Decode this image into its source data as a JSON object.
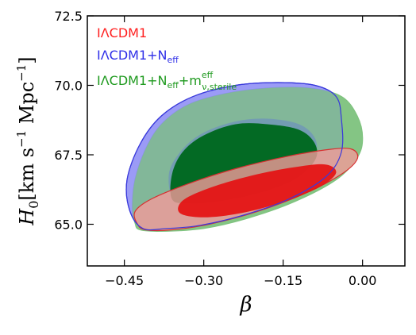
{
  "chart_data": {
    "type": "contour",
    "xlabel": "β",
    "ylabel": {
      "symbol": "H",
      "subscript": "0",
      "units": "[km s",
      "exp1": "−1",
      "units2": " Mpc",
      "exp2": "−1",
      "close": "]"
    },
    "xlim": [
      -0.52,
      0.08
    ],
    "ylim": [
      63.5,
      72.5
    ],
    "xticks": [
      -0.45,
      -0.3,
      -0.15,
      0.0
    ],
    "xtick_labels": [
      "−0.45",
      "−0.30",
      "−0.15",
      "0.00"
    ],
    "yticks": [
      65.0,
      67.5,
      70.0,
      72.5
    ],
    "ytick_labels": [
      "65.0",
      "67.5",
      "70.0",
      "72.5"
    ],
    "legend": [
      {
        "text": "IΛCDM1",
        "color": "#ff2020"
      },
      {
        "text": "IΛCDM1+N",
        "sub": "eff",
        "color": "#2f2fe8"
      },
      {
        "text": "IΛCDM1+N",
        "sub": "eff",
        "extra": "+m",
        "extra_sup": "eff",
        "extra_sub": "ν,sterile",
        "color": "#1f9a1f"
      }
    ],
    "series": [
      {
        "name": "IΛCDM1+N_eff+m_ν,sterile",
        "colors": {
          "outer": "#7fc37f",
          "inner": "#036a24"
        },
        "outer": [
          [
            -0.43,
            65.05
          ],
          [
            -0.435,
            65.6
          ],
          [
            -0.43,
            66.6
          ],
          [
            -0.41,
            67.7
          ],
          [
            -0.38,
            68.6
          ],
          [
            -0.33,
            69.3
          ],
          [
            -0.26,
            69.7
          ],
          [
            -0.18,
            69.9
          ],
          [
            -0.1,
            69.9
          ],
          [
            -0.04,
            69.6
          ],
          [
            -0.01,
            68.9
          ],
          [
            0.0,
            68.1
          ],
          [
            -0.01,
            67.4
          ],
          [
            -0.05,
            66.6
          ],
          [
            -0.13,
            65.8
          ],
          [
            -0.22,
            65.2
          ],
          [
            -0.3,
            64.85
          ],
          [
            -0.37,
            64.75
          ],
          [
            -0.42,
            64.8
          ]
        ],
        "inner": [
          [
            -0.36,
            65.9
          ],
          [
            -0.36,
            66.8
          ],
          [
            -0.34,
            67.6
          ],
          [
            -0.3,
            68.2
          ],
          [
            -0.24,
            68.6
          ],
          [
            -0.18,
            68.6
          ],
          [
            -0.12,
            68.4
          ],
          [
            -0.09,
            67.9
          ],
          [
            -0.09,
            67.3
          ],
          [
            -0.13,
            66.6
          ],
          [
            -0.2,
            66.1
          ],
          [
            -0.28,
            65.8
          ],
          [
            -0.33,
            65.75
          ]
        ]
      },
      {
        "name": "IΛCDM1+N_eff",
        "colors": {
          "outer": "#8a8af5",
          "inner": "#6d93bb",
          "stroke": "#3a3adb"
        },
        "outer": [
          [
            -0.415,
            64.85
          ],
          [
            -0.44,
            65.5
          ],
          [
            -0.445,
            66.6
          ],
          [
            -0.42,
            67.9
          ],
          [
            -0.38,
            68.9
          ],
          [
            -0.32,
            69.6
          ],
          [
            -0.24,
            70.0
          ],
          [
            -0.16,
            70.1
          ],
          [
            -0.09,
            70.0
          ],
          [
            -0.05,
            69.6
          ],
          [
            -0.04,
            68.8
          ],
          [
            -0.04,
            67.6
          ],
          [
            -0.07,
            66.7
          ],
          [
            -0.14,
            65.9
          ],
          [
            -0.23,
            65.3
          ],
          [
            -0.31,
            64.95
          ],
          [
            -0.37,
            64.85
          ]
        ],
        "inner": [
          [
            -0.36,
            66.0
          ],
          [
            -0.365,
            66.9
          ],
          [
            -0.34,
            67.7
          ],
          [
            -0.3,
            68.3
          ],
          [
            -0.24,
            68.7
          ],
          [
            -0.18,
            68.8
          ],
          [
            -0.12,
            68.6
          ],
          [
            -0.09,
            68.1
          ],
          [
            -0.09,
            67.5
          ],
          [
            -0.12,
            66.8
          ],
          [
            -0.19,
            66.2
          ],
          [
            -0.27,
            65.9
          ],
          [
            -0.33,
            65.85
          ]
        ]
      },
      {
        "name": "IΛCDM1",
        "colors": {
          "outer": "#f39a9a",
          "inner": "#e41515",
          "stroke": "#d63030"
        },
        "outer": [
          [
            -0.425,
            65.0
          ],
          [
            -0.43,
            65.45
          ],
          [
            -0.4,
            65.9
          ],
          [
            -0.33,
            66.45
          ],
          [
            -0.24,
            67.0
          ],
          [
            -0.14,
            67.45
          ],
          [
            -0.06,
            67.7
          ],
          [
            -0.02,
            67.7
          ],
          [
            -0.01,
            67.35
          ],
          [
            -0.04,
            66.8
          ],
          [
            -0.11,
            66.1
          ],
          [
            -0.2,
            65.45
          ],
          [
            -0.29,
            65.0
          ],
          [
            -0.36,
            64.8
          ],
          [
            -0.41,
            64.8
          ]
        ],
        "inner": [
          [
            -0.345,
            65.4
          ],
          [
            -0.34,
            65.85
          ],
          [
            -0.29,
            66.3
          ],
          [
            -0.21,
            66.75
          ],
          [
            -0.13,
            67.05
          ],
          [
            -0.07,
            67.15
          ],
          [
            -0.05,
            66.85
          ],
          [
            -0.08,
            66.35
          ],
          [
            -0.15,
            65.8
          ],
          [
            -0.23,
            65.4
          ],
          [
            -0.3,
            65.25
          ]
        ]
      }
    ]
  }
}
